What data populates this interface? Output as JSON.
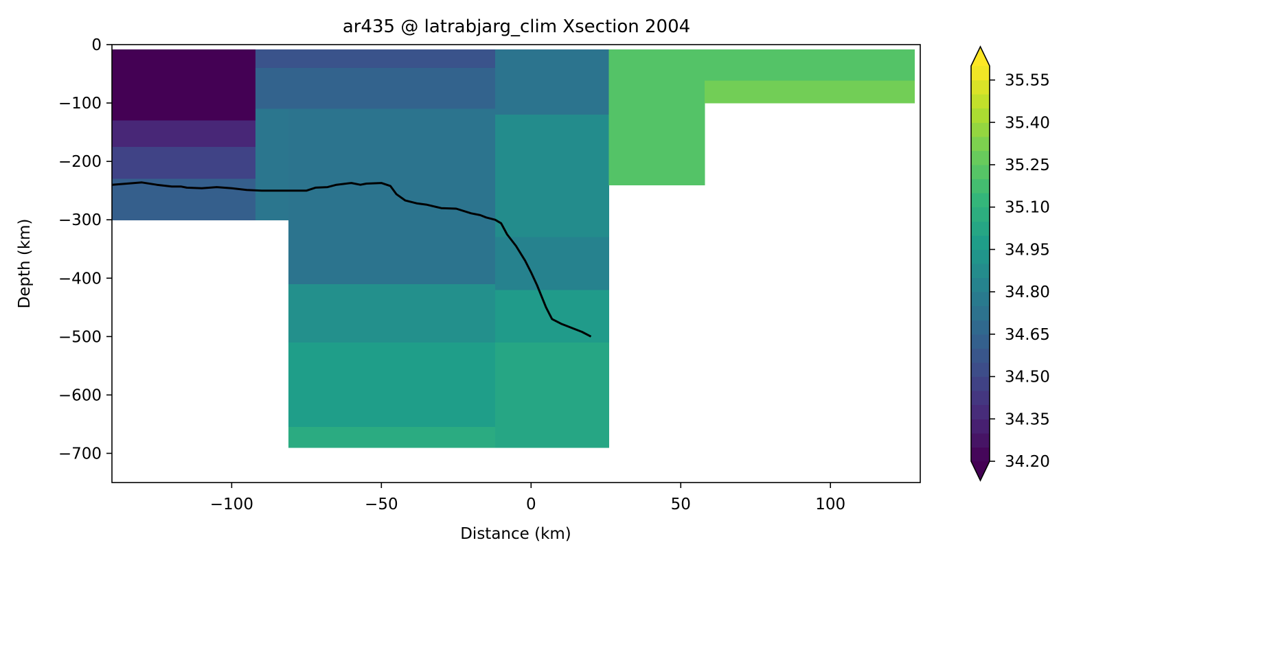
{
  "chart_data": {
    "type": "heatmap",
    "title": "ar435 @ latrabjarg_clim Xsection 2004",
    "xlabel": "Distance (km)",
    "ylabel": "Depth (km)",
    "xlim": [
      -140,
      130
    ],
    "ylim": [
      -750,
      0
    ],
    "xticks": [
      -100,
      -50,
      0,
      50,
      100
    ],
    "xtick_labels": [
      "−100",
      "−50",
      "0",
      "50",
      "100"
    ],
    "yticks": [
      0,
      -100,
      -200,
      -300,
      -400,
      -500,
      -600,
      -700
    ],
    "ytick_labels": [
      "0",
      "−100",
      "−200",
      "−300",
      "−400",
      "−500",
      "−600",
      "−700"
    ],
    "grid": false,
    "colormap": "viridis",
    "colorbar": {
      "vmin": 34.2,
      "vmax": 35.6,
      "levels": 28,
      "extend": "both",
      "ticks": [
        34.2,
        34.35,
        34.5,
        34.65,
        34.8,
        34.95,
        35.1,
        35.25,
        35.4,
        35.55
      ],
      "tick_labels": [
        "34.20",
        "34.35",
        "34.50",
        "34.65",
        "34.80",
        "34.95",
        "35.10",
        "35.25",
        "35.40",
        "35.55"
      ]
    },
    "stations": [
      {
        "x0": -140,
        "x1": -92,
        "levels": [
          {
            "top": -8,
            "bottom": -130,
            "value": 34.2
          },
          {
            "top": -130,
            "bottom": -175,
            "value": 34.35
          },
          {
            "top": -175,
            "bottom": -230,
            "value": 34.48
          },
          {
            "top": -230,
            "bottom": -300,
            "value": 34.62
          }
        ]
      },
      {
        "x0": -92,
        "x1": -81,
        "levels": [
          {
            "top": -8,
            "bottom": -40,
            "value": 34.56
          },
          {
            "top": -40,
            "bottom": -110,
            "value": 34.64
          },
          {
            "top": -110,
            "bottom": -300,
            "value": 34.75
          }
        ]
      },
      {
        "x0": -81,
        "x1": -12,
        "levels": [
          {
            "top": -8,
            "bottom": -40,
            "value": 34.56
          },
          {
            "top": -40,
            "bottom": -110,
            "value": 34.64
          },
          {
            "top": -110,
            "bottom": -410,
            "value": 34.74
          },
          {
            "top": -410,
            "bottom": -510,
            "value": 34.9
          },
          {
            "top": -510,
            "bottom": -655,
            "value": 34.98
          },
          {
            "top": -655,
            "bottom": -690,
            "value": 35.06
          }
        ]
      },
      {
        "x0": -12,
        "x1": 26,
        "levels": [
          {
            "top": -8,
            "bottom": -120,
            "value": 34.74
          },
          {
            "top": -120,
            "bottom": -330,
            "value": 34.88
          },
          {
            "top": -330,
            "bottom": -420,
            "value": 34.82
          },
          {
            "top": -420,
            "bottom": -510,
            "value": 34.96
          },
          {
            "top": -510,
            "bottom": -690,
            "value": 35.03
          }
        ]
      },
      {
        "x0": 26,
        "x1": 58,
        "levels": [
          {
            "top": -8,
            "bottom": -240,
            "value": 35.22
          }
        ]
      },
      {
        "x0": 58,
        "x1": 128,
        "levels": [
          {
            "top": -8,
            "bottom": -62,
            "value": 35.22
          },
          {
            "top": -62,
            "bottom": -100,
            "value": 35.3
          }
        ]
      }
    ],
    "series": [
      {
        "color": "#000000",
        "x": [
          -140,
          -135,
          -130,
          -125,
          -120,
          -117,
          -115,
          -110,
          -105,
          -100,
          -95,
          -90,
          -85,
          -80,
          -75,
          -72,
          -68,
          -65,
          -60,
          -57,
          -55,
          -50,
          -47,
          -45,
          -42,
          -38,
          -35,
          -30,
          -25,
          -20,
          -17,
          -15,
          -12,
          -10,
          -8,
          -5,
          -2,
          0,
          2,
          5,
          7,
          10,
          12,
          15,
          17,
          20
        ],
        "y": [
          -240,
          -238,
          -236,
          -240,
          -243,
          -243,
          -245,
          -246,
          -244,
          -246,
          -249,
          -250,
          -250,
          -250,
          -250,
          -245,
          -244,
          -240,
          -237,
          -240,
          -238,
          -237,
          -242,
          -256,
          -267,
          -272,
          -274,
          -280,
          -281,
          -289,
          -292,
          -296,
          -300,
          -306,
          -325,
          -345,
          -370,
          -390,
          -412,
          -450,
          -470,
          -478,
          -482,
          -488,
          -492,
          -500
        ]
      }
    ]
  }
}
